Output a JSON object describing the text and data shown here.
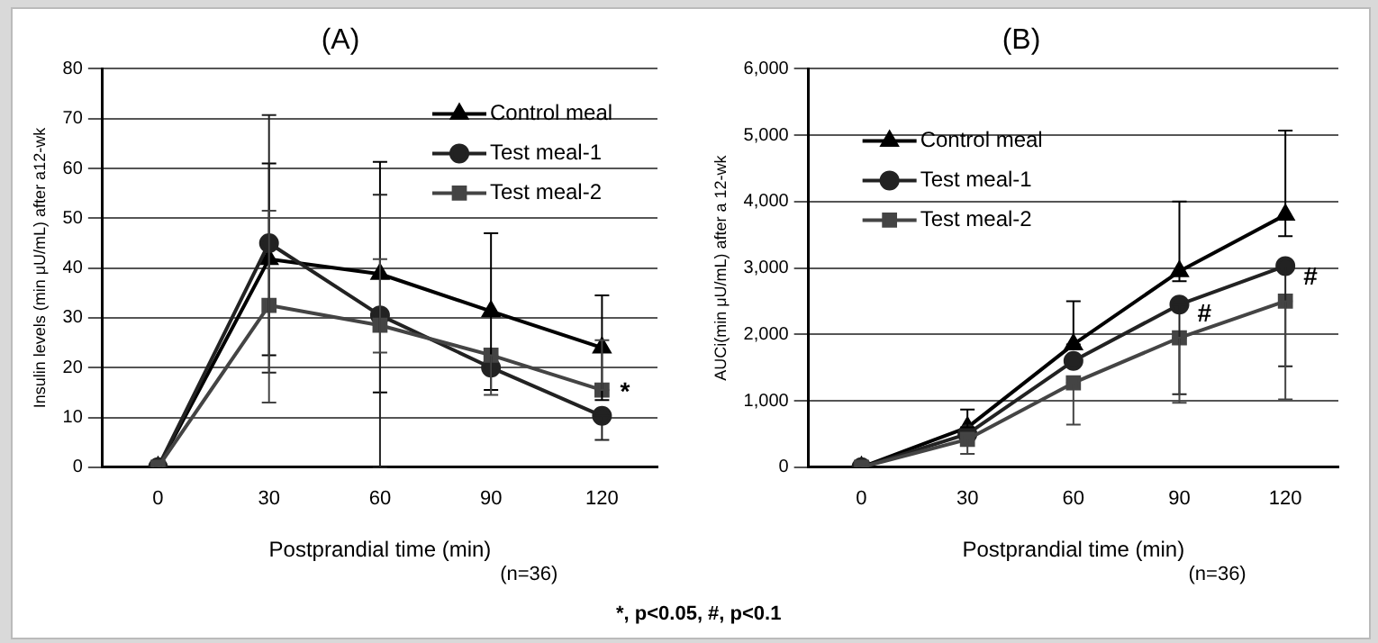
{
  "chart_data": [
    {
      "type": "line",
      "title": "(A)",
      "xlabel": "Postprandial time (min)",
      "ylabel": "Insulin levels (min μU/mL) after a12-wk",
      "categories": [
        "0",
        "30",
        "60",
        "90",
        "120"
      ],
      "series": [
        {
          "name": "Control meal",
          "color": "#000000",
          "marker": "triangle",
          "values": [
            0,
            41.8,
            38.8,
            31.3,
            24
          ],
          "errors": [
            null,
            [
              22.5,
              61
            ],
            [
              15,
              61.3
            ],
            [
              15.5,
              47
            ],
            [
              13.5,
              34.5
            ]
          ]
        },
        {
          "name": "Test meal-1",
          "color": "#222222",
          "marker": "circle",
          "values": [
            0,
            45,
            30.5,
            20,
            10.3
          ],
          "errors": [
            null,
            [
              19,
              70.7
            ],
            [
              0,
              54.7
            ],
            null,
            [
              5.5,
              10.3
            ]
          ]
        },
        {
          "name": "Test meal-2",
          "color": "#444444",
          "marker": "square",
          "values": [
            0,
            32.5,
            28.5,
            22.5,
            15.5
          ],
          "errors": [
            null,
            [
              13,
              51.5
            ],
            [
              23,
              41.8
            ],
            [
              14.5,
              22.5
            ],
            [
              15.5,
              25.5
            ]
          ]
        }
      ],
      "ylim": [
        0,
        80
      ],
      "yticks": [
        0,
        10,
        20,
        30,
        40,
        50,
        60,
        70,
        80
      ],
      "grid": "y",
      "legend": "top right",
      "line_style": "solid",
      "annotations": [
        {
          "text": "*",
          "x": "120",
          "y": 10.3
        },
        "(n=36)",
        "*,  p<0.05,   #, p<0.1"
      ]
    },
    {
      "type": "line",
      "title": "(B)",
      "xlabel": "Postprandial time (min)",
      "ylabel": "AUCi(min μU/mL) after a 12-wk",
      "categories": [
        "0",
        "30",
        "60",
        "90",
        "120"
      ],
      "series": [
        {
          "name": "Control meal",
          "color": "#000000",
          "marker": "triangle",
          "values": [
            0,
            600,
            1850,
            2950,
            3800
          ],
          "errors": [
            null,
            [
              600,
              870
            ],
            [
              1850,
              2500
            ],
            [
              2800,
              4000
            ],
            [
              3480,
              5070
            ]
          ]
        },
        {
          "name": "Test meal-1",
          "color": "#222222",
          "marker": "circle",
          "values": [
            0,
            500,
            1600,
            2450,
            3030
          ],
          "errors": [
            null,
            null,
            null,
            [
              1100,
              2450
            ],
            [
              1520,
              3030
            ]
          ]
        },
        {
          "name": "Test meal-2",
          "color": "#444444",
          "marker": "square",
          "values": [
            0,
            420,
            1270,
            1950,
            2500
          ],
          "errors": [
            null,
            [
              200,
              420
            ],
            [
              640,
              1270
            ],
            [
              970,
              1950
            ],
            [
              1020,
              2500
            ]
          ]
        }
      ],
      "ylim": [
        0,
        6000
      ],
      "yticks": [
        0,
        {
          "value": 1000,
          "label": "1,000"
        },
        {
          "value": 2000,
          "label": "2,000"
        },
        {
          "value": 3000,
          "label": "3,000"
        },
        {
          "value": 4000,
          "label": "4,000"
        },
        {
          "value": 5000,
          "label": "5,000"
        },
        {
          "value": 6000,
          "label": "6,000"
        }
      ],
      "grid": "y",
      "legend": "top left",
      "line_style": "solid",
      "annotations": [
        {
          "text": "#",
          "x": "90",
          "y": 1950
        },
        {
          "text": "#",
          "x": "120",
          "y": 2500
        },
        "(n=36)"
      ]
    }
  ]
}
